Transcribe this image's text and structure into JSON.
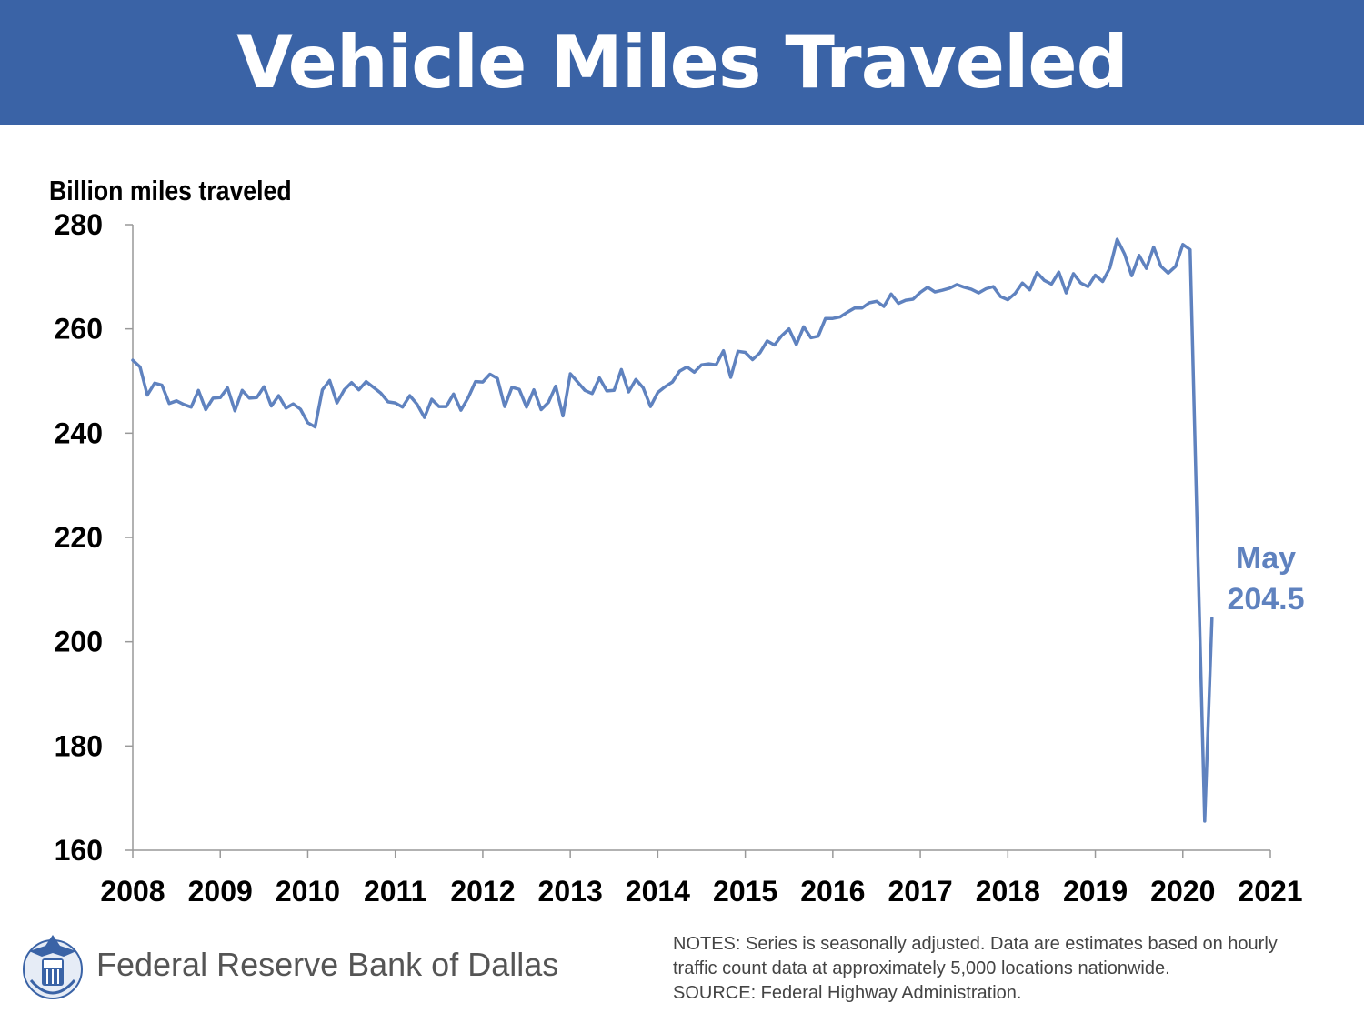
{
  "header": {
    "title": "Vehicle Miles Traveled"
  },
  "colors": {
    "banner": "#3a63a6",
    "series": "#5f82bf",
    "annotation": "#5f82bf"
  },
  "chart_data": {
    "type": "line",
    "title": "Vehicle Miles Traveled",
    "ylabel": "Billion miles traveled",
    "xlabel": "",
    "ylim": [
      160,
      280
    ],
    "yticks": [
      160,
      180,
      200,
      220,
      240,
      260,
      280
    ],
    "xlim": [
      2008,
      2021
    ],
    "xticks": [
      "2008",
      "2009",
      "2010",
      "2011",
      "2012",
      "2013",
      "2014",
      "2015",
      "2016",
      "2017",
      "2018",
      "2019",
      "2020",
      "2021"
    ],
    "grid": false,
    "series": [
      {
        "name": "Vehicle miles traveled",
        "start": "2008-01",
        "frequency": "monthly",
        "values": [
          254.0,
          252.7,
          247.3,
          249.6,
          249.2,
          245.7,
          246.2,
          245.5,
          245.0,
          248.2,
          244.5,
          246.7,
          246.8,
          248.7,
          244.3,
          248.2,
          246.7,
          246.8,
          248.9,
          245.2,
          247.2,
          244.8,
          245.6,
          244.6,
          242.0,
          241.2,
          248.3,
          250.1,
          245.8,
          248.3,
          249.7,
          248.3,
          249.9,
          248.8,
          247.7,
          246.0,
          245.8,
          245.0,
          247.2,
          245.5,
          243.0,
          246.5,
          245.1,
          245.1,
          247.5,
          244.4,
          246.8,
          249.9,
          249.8,
          251.3,
          250.5,
          245.1,
          248.8,
          248.4,
          245.0,
          248.3,
          244.5,
          245.9,
          249.0,
          243.3,
          251.4,
          249.8,
          248.2,
          247.6,
          250.6,
          248.1,
          248.2,
          252.2,
          247.9,
          250.3,
          248.7,
          245.1,
          247.8,
          248.9,
          249.8,
          251.9,
          252.7,
          251.7,
          253.1,
          253.3,
          253.1,
          255.8,
          250.7,
          255.7,
          255.5,
          254.1,
          255.4,
          257.7,
          256.9,
          258.7,
          260.0,
          257.0,
          260.4,
          258.3,
          258.6,
          262.0,
          262.0,
          262.3,
          263.2,
          264.0,
          264.0,
          265.0,
          265.3,
          264.3,
          266.7,
          264.9,
          265.5,
          265.7,
          267.0,
          268.0,
          267.1,
          267.4,
          267.8,
          268.5,
          268.0,
          267.6,
          266.9,
          267.7,
          268.1,
          266.2,
          265.6,
          266.8,
          268.8,
          267.5,
          270.8,
          269.3,
          268.6,
          270.9,
          266.9,
          270.6,
          268.8,
          268.1,
          270.3,
          269.1,
          271.7,
          277.2,
          274.4,
          270.2,
          274.1,
          271.6,
          275.7,
          272.0,
          270.7,
          272.0,
          276.2,
          275.2,
          220.0,
          165.6,
          204.5
        ]
      }
    ],
    "annotations": [
      {
        "text_line1": "May",
        "text_line2": "204.5",
        "x": "2020-05",
        "y": 204.5
      }
    ]
  },
  "footer": {
    "organization": "Federal Reserve Bank of Dallas",
    "notes_line1": "NOTES: Series is seasonally adjusted. Data are estimates based on hourly",
    "notes_line2": "traffic count data at approximately 5,000 locations nationwide.",
    "source": "SOURCE: Federal Highway Administration."
  }
}
